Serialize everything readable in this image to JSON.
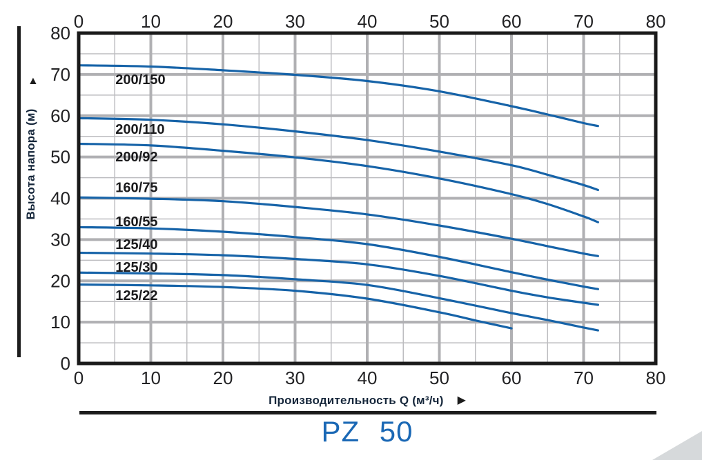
{
  "icons": {
    "up_arrow": "▲",
    "right_arrow": "▶"
  },
  "colors": {
    "curve": "#1663a8",
    "model_title": "#1a68b5",
    "axis_title": "#16273b",
    "tick_label": "#222224",
    "curve_label": "#1a1a1c",
    "grid_major": "#b0b0b3",
    "grid_minor": "#bdbdc0",
    "border": "#1a1a1a",
    "corner": "#d6d9db",
    "ink": "#1c1c1c"
  },
  "chart_data": {
    "type": "line",
    "title": "PZ 50",
    "xlabel": "Производительность Q (м³/ч)",
    "ylabel": "Высота напора (м)",
    "xlim": [
      0,
      80
    ],
    "ylim": [
      0,
      80
    ],
    "x_ticks": [
      0,
      10,
      20,
      30,
      40,
      50,
      60,
      70,
      80
    ],
    "y_ticks": [
      0,
      10,
      20,
      30,
      40,
      50,
      60,
      70,
      80
    ],
    "minor_grid_step": 5,
    "grid": true,
    "legend_position": "inline-labels",
    "series": [
      {
        "name": "200/150",
        "label_x": 5.1,
        "label_y": 68.8,
        "points": [
          [
            0,
            72.2
          ],
          [
            10,
            71.9
          ],
          [
            20,
            71.0
          ],
          [
            30,
            69.9
          ],
          [
            40,
            68.4
          ],
          [
            50,
            65.9
          ],
          [
            60,
            62.3
          ],
          [
            65,
            60.3
          ],
          [
            70,
            58.2
          ],
          [
            72,
            57.5
          ]
        ]
      },
      {
        "name": "200/110",
        "label_x": 5.1,
        "label_y": 56.8,
        "points": [
          [
            0,
            59.4
          ],
          [
            10,
            59.0
          ],
          [
            20,
            57.9
          ],
          [
            30,
            56.2
          ],
          [
            40,
            54.1
          ],
          [
            50,
            51.3
          ],
          [
            60,
            48.0
          ],
          [
            65,
            45.7
          ],
          [
            70,
            43.2
          ],
          [
            72,
            42.0
          ]
        ]
      },
      {
        "name": "200/92",
        "label_x": 5.1,
        "label_y": 50.1,
        "points": [
          [
            0,
            53.2
          ],
          [
            10,
            52.8
          ],
          [
            20,
            51.5
          ],
          [
            30,
            49.9
          ],
          [
            40,
            47.8
          ],
          [
            50,
            44.8
          ],
          [
            60,
            41.0
          ],
          [
            65,
            38.6
          ],
          [
            70,
            35.6
          ],
          [
            72,
            34.2
          ]
        ]
      },
      {
        "name": "160/75",
        "label_x": 5.1,
        "label_y": 42.7,
        "points": [
          [
            0,
            40.2
          ],
          [
            10,
            39.9
          ],
          [
            20,
            39.3
          ],
          [
            30,
            37.9
          ],
          [
            40,
            36.1
          ],
          [
            50,
            33.4
          ],
          [
            60,
            30.2
          ],
          [
            65,
            28.4
          ],
          [
            70,
            26.6
          ],
          [
            72,
            26.0
          ]
        ]
      },
      {
        "name": "160/55",
        "label_x": 5.1,
        "label_y": 34.4,
        "points": [
          [
            0,
            33.0
          ],
          [
            10,
            32.7
          ],
          [
            20,
            31.9
          ],
          [
            30,
            30.6
          ],
          [
            40,
            28.9
          ],
          [
            50,
            25.8
          ],
          [
            60,
            22.1
          ],
          [
            65,
            20.3
          ],
          [
            70,
            18.6
          ],
          [
            72,
            18.0
          ]
        ]
      },
      {
        "name": "125/40",
        "label_x": 5.1,
        "label_y": 28.9,
        "points": [
          [
            0,
            26.8
          ],
          [
            10,
            26.6
          ],
          [
            20,
            26.2
          ],
          [
            30,
            25.3
          ],
          [
            40,
            24.0
          ],
          [
            50,
            21.2
          ],
          [
            60,
            17.6
          ],
          [
            65,
            16.0
          ],
          [
            70,
            14.7
          ],
          [
            72,
            14.2
          ]
        ]
      },
      {
        "name": "125/30",
        "label_x": 5.1,
        "label_y": 23.4,
        "points": [
          [
            0,
            22.0
          ],
          [
            10,
            21.8
          ],
          [
            20,
            21.4
          ],
          [
            30,
            20.4
          ],
          [
            40,
            19.0
          ],
          [
            50,
            15.8
          ],
          [
            60,
            12.2
          ],
          [
            65,
            10.5
          ],
          [
            70,
            8.7
          ],
          [
            72,
            8.0
          ]
        ]
      },
      {
        "name": "125/22",
        "label_x": 5.1,
        "label_y": 16.5,
        "points": [
          [
            0,
            19.1
          ],
          [
            10,
            18.9
          ],
          [
            20,
            18.5
          ],
          [
            30,
            17.6
          ],
          [
            40,
            15.7
          ],
          [
            50,
            12.4
          ],
          [
            55,
            10.4
          ],
          [
            60,
            8.5
          ]
        ]
      }
    ]
  }
}
